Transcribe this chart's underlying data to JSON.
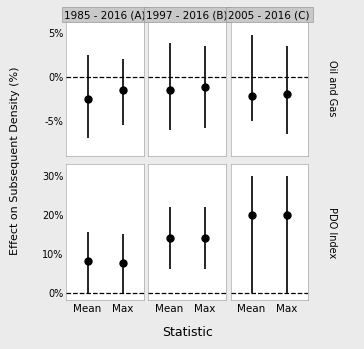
{
  "col_labels": [
    "1985 - 2016 (A)",
    "1997 - 2016 (B)",
    "2005 - 2016 (C)"
  ],
  "row_labels": [
    "Oil and Gas",
    "PDO Index"
  ],
  "x_labels": [
    "Mean",
    "Max"
  ],
  "x_label": "Statistic",
  "y_label": "Effect on Subsequent Density (%)",
  "oil_gas": {
    "A": {
      "mean": {
        "y": -2.5,
        "ylo": -7.0,
        "yhi": 2.5
      },
      "max": {
        "y": -1.5,
        "ylo": -5.5,
        "yhi": 2.0
      }
    },
    "B": {
      "mean": {
        "y": -1.5,
        "ylo": -6.0,
        "yhi": 3.8
      },
      "max": {
        "y": -1.2,
        "ylo": -5.8,
        "yhi": 3.5
      }
    },
    "C": {
      "mean": {
        "y": -2.2,
        "ylo": -5.0,
        "yhi": 4.8
      },
      "max": {
        "y": -2.0,
        "ylo": -6.5,
        "yhi": 3.5
      }
    }
  },
  "pdo": {
    "A": {
      "mean": {
        "y": 8.0,
        "ylo": 0.0,
        "yhi": 15.5
      },
      "max": {
        "y": 7.5,
        "ylo": 0.0,
        "yhi": 15.0
      }
    },
    "B": {
      "mean": {
        "y": 14.0,
        "ylo": 6.0,
        "yhi": 22.0
      },
      "max": {
        "y": 14.0,
        "ylo": 6.0,
        "yhi": 22.0
      }
    },
    "C": {
      "mean": {
        "y": 20.0,
        "ylo": 0.0,
        "yhi": 30.0
      },
      "max": {
        "y": 20.0,
        "ylo": 0.0,
        "yhi": 30.0
      }
    }
  },
  "oil_ylim": [
    -9,
    6.5
  ],
  "oil_yticks": [
    -5,
    0,
    5
  ],
  "oil_ytick_labels": [
    "-5%",
    "0%",
    "5%"
  ],
  "pdo_ylim": [
    -2,
    33
  ],
  "pdo_yticks": [
    0,
    10,
    20,
    30
  ],
  "pdo_ytick_labels": [
    "0%",
    "10%",
    "20%",
    "30%"
  ],
  "bg_color": "#ebebeb",
  "panel_bg": "#ffffff",
  "header_bg": "#c8c8c8",
  "strip_bg": "#c8c8c8",
  "dot_color": "#000000",
  "line_color": "#000000",
  "grid_color": "#ffffff",
  "dot_size": 5,
  "linewidth": 1.2
}
